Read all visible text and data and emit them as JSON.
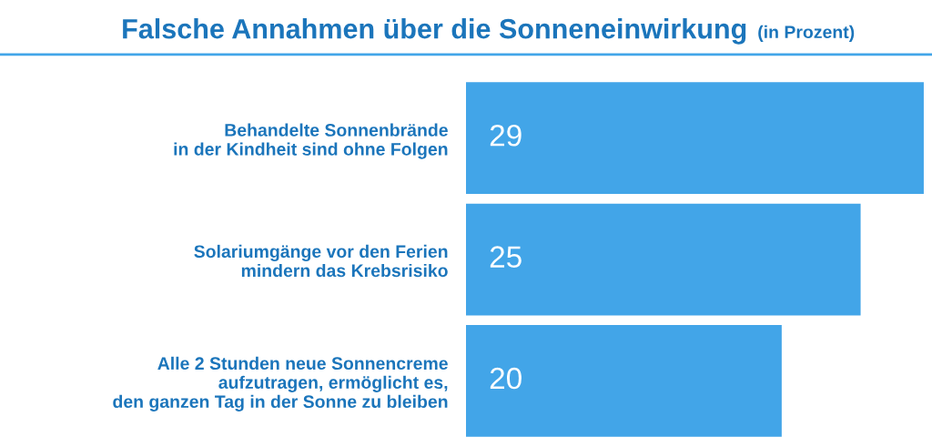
{
  "chart_data": {
    "type": "bar",
    "orientation": "horizontal",
    "title": "Falsche Annahmen über die Sonneneinwirkung",
    "subtitle": "(in Prozent)",
    "categories": [
      "Behandelte Sonnenbrände\nin der Kindheit sind ohne Folgen",
      "Solariumgänge vor den Ferien\nmindern das Krebsrisiko",
      "Alle 2 Stunden neue Sonnencreme\naufzutragen, ermöglicht es,\nden ganzen Tag in der Sonne zu bleiben"
    ],
    "values": [
      29,
      25,
      20
    ],
    "color": "#42a5e8",
    "data_labels": true,
    "grid": false,
    "legend": false
  }
}
